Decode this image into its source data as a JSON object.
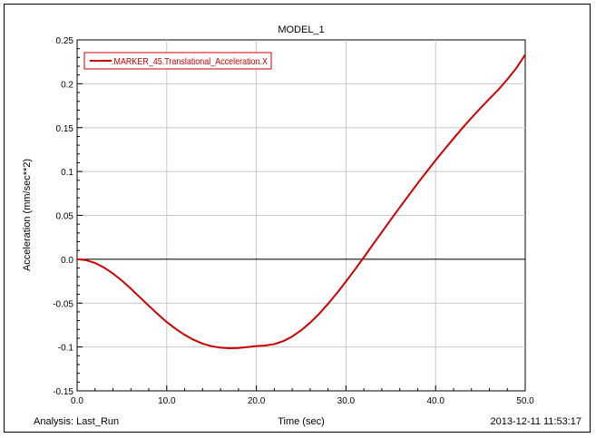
{
  "chart_data": {
    "type": "line",
    "title": "MODEL_1",
    "xlabel": "Time (sec)",
    "ylabel": "Acceleration (mm/sec**2)",
    "xlim": [
      0,
      50
    ],
    "ylim": [
      -0.15,
      0.25
    ],
    "x_ticks": [
      0,
      10,
      20,
      30,
      40,
      50
    ],
    "x_tick_labels": [
      "0.0",
      "10.0",
      "20.0",
      "30.0",
      "40.0",
      "50.0"
    ],
    "y_ticks": [
      0.25,
      0.2,
      0.15,
      0.1,
      0.05,
      0.0,
      -0.05,
      -0.1,
      -0.15
    ],
    "y_tick_labels": [
      "0.25",
      "0.2",
      "0.15",
      "0.1",
      "0.05",
      "0.0",
      "-0.05",
      "-0.1",
      "-0.15"
    ],
    "grid": true,
    "zero_line": true,
    "legend_position": "top-left",
    "footer_left": "Analysis:  Last_Run",
    "footer_right": "2013-12-11 11:53:17",
    "series": [
      {
        "name": ".MARKER_45.Translational_Acceleration.X",
        "color": "#cc0000",
        "x": [
          0,
          1,
          2,
          3,
          4,
          5,
          6,
          7,
          8,
          9,
          10,
          11,
          12,
          13,
          14,
          15,
          16,
          17,
          18,
          19,
          20,
          21,
          22,
          23,
          24,
          25,
          26,
          27,
          28,
          29,
          30,
          31,
          32,
          33,
          34,
          35,
          36,
          37,
          38,
          39,
          40,
          41,
          42,
          43,
          44,
          45,
          46,
          47,
          48,
          49,
          50
        ],
        "y": [
          0.0,
          -0.0011,
          -0.0043,
          -0.0094,
          -0.0163,
          -0.0244,
          -0.0336,
          -0.0433,
          -0.0531,
          -0.0626,
          -0.0715,
          -0.0794,
          -0.0862,
          -0.0918,
          -0.0961,
          -0.0991,
          -0.1008,
          -0.1014,
          -0.1011,
          -0.1002,
          -0.0989,
          -0.0983,
          -0.0968,
          -0.0934,
          -0.0881,
          -0.081,
          -0.0723,
          -0.0622,
          -0.0509,
          -0.0385,
          -0.0254,
          -0.0117,
          0.0024,
          0.0166,
          0.0309,
          0.0451,
          0.0591,
          0.0729,
          0.0865,
          0.0997,
          0.1127,
          0.1254,
          0.1377,
          0.1496,
          0.1611,
          0.1722,
          0.1829,
          0.1933,
          0.2049,
          0.2177,
          0.2333
        ]
      }
    ]
  }
}
